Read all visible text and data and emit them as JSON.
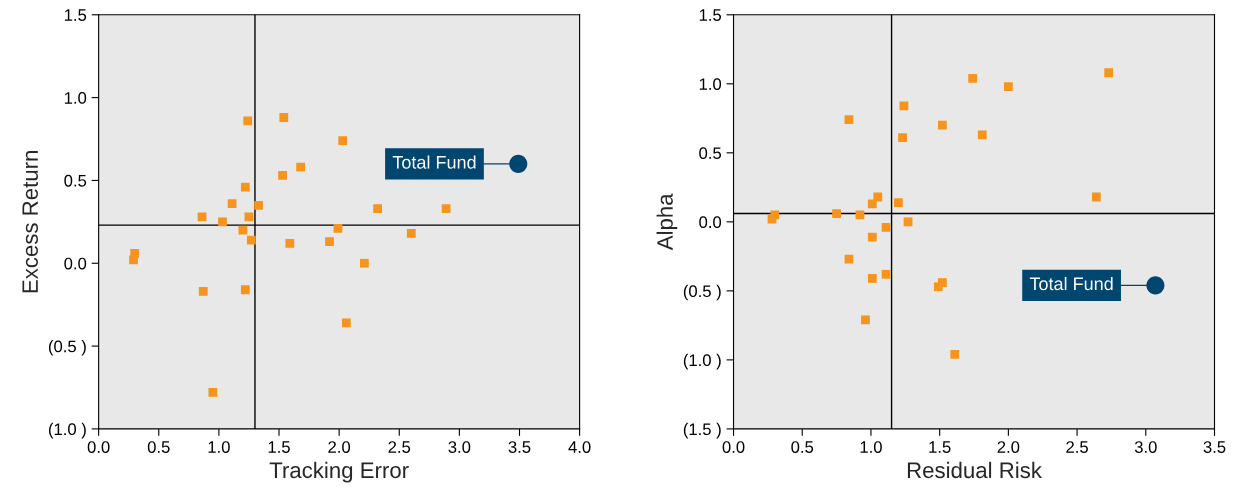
{
  "chart_data": [
    {
      "type": "scatter",
      "xlabel": "Tracking Error",
      "ylabel": "Excess Return",
      "marker": "square",
      "grid": false,
      "legend": "right",
      "xlim": [
        0,
        4
      ],
      "xticks": [
        {
          "value": 0,
          "label": "0.0"
        },
        {
          "value": 0.5,
          "label": "0.5"
        },
        {
          "value": 1,
          "label": "1.0"
        },
        {
          "value": 1.5,
          "label": "1.5"
        },
        {
          "value": 2,
          "label": "2.0"
        },
        {
          "value": 2.5,
          "label": "2.5"
        },
        {
          "value": 3,
          "label": "3.0"
        },
        {
          "value": 3.5,
          "label": "3.5"
        },
        {
          "value": 4,
          "label": "4.0"
        }
      ],
      "ylim": [
        -1,
        1.5
      ],
      "yticks": [
        {
          "value": -1,
          "label": "(1.0 )"
        },
        {
          "value": -0.5,
          "label": "(0.5 )"
        },
        {
          "value": 0,
          "label": "0.0"
        },
        {
          "value": 0.5,
          "label": "0.5"
        },
        {
          "value": 1,
          "label": "1.0"
        },
        {
          "value": 1.5,
          "label": "1.5"
        }
      ],
      "ref_lines": [
        {
          "axis": "x",
          "value": 1.3,
          "color": "#000000"
        },
        {
          "axis": "y",
          "value": 0.23,
          "color": "#000000"
        }
      ],
      "series": [
        {
          "color": "#f7941d",
          "x": [
            1.24,
            1.54,
            2.03,
            1.68,
            1.53,
            1.22,
            1.11,
            1.33,
            2.32,
            2.89,
            0.86,
            1.25,
            1.03,
            1.2,
            1.99,
            2.6,
            1.27,
            1.59,
            1.92,
            0.3,
            0.29,
            2.21,
            0.87,
            1.22,
            2.06,
            0.95
          ],
          "values": [
            0.86,
            0.88,
            0.74,
            0.58,
            0.53,
            0.46,
            0.36,
            0.35,
            0.33,
            0.33,
            0.28,
            0.28,
            0.25,
            0.2,
            0.21,
            0.18,
            0.14,
            0.12,
            0.13,
            0.06,
            0.02,
            0.0,
            -0.17,
            -0.16,
            -0.36,
            -0.78
          ]
        },
        {
          "name": "Total Fund",
          "color": "#00466e",
          "marker": "circle",
          "x": [
            3.49
          ],
          "values": [
            0.6
          ]
        }
      ]
    },
    {
      "type": "scatter",
      "xlabel": "Residual Risk",
      "ylabel": "Alpha",
      "marker": "square",
      "grid": false,
      "legend": "bottom right",
      "xlim": [
        0,
        3.5
      ],
      "xticks": [
        {
          "value": 0,
          "label": "0.0"
        },
        0.5,
        {
          "value": 1,
          "label": "1.0"
        },
        1.5,
        {
          "value": 2,
          "label": "2.0"
        },
        2.5,
        {
          "value": 3,
          "label": "3.0"
        },
        3.5
      ],
      "ylim": [
        -1.5,
        1.5
      ],
      "yticks": [
        {
          "value": -1.5,
          "label": "(1.5 )"
        },
        {
          "value": -1,
          "label": "(1.0 )"
        },
        {
          "value": -0.5,
          "label": "(0.5 )"
        },
        {
          "value": 0,
          "label": "0.0"
        },
        0.5,
        {
          "value": 1,
          "label": "1.0"
        },
        1.5
      ],
      "ref_lines": [
        {
          "axis": "x",
          "value": 1.15,
          "color": "#000000"
        },
        {
          "axis": "y",
          "value": 0.06,
          "color": "#000000"
        }
      ],
      "series": [
        {
          "color": "#f7941d",
          "x": [
            2.73,
            1.74,
            2.0,
            1.24,
            0.84,
            1.52,
            1.81,
            1.23,
            2.64,
            1.05,
            1.01,
            1.2,
            0.3,
            0.28,
            0.75,
            0.92,
            1.27,
            1.11,
            1.01,
            0.84,
            1.11,
            1.01,
            1.52,
            1.49,
            0.96,
            1.61
          ],
          "values": [
            1.08,
            1.04,
            0.98,
            0.84,
            0.74,
            0.7,
            0.63,
            0.61,
            0.18,
            0.18,
            0.13,
            0.14,
            0.05,
            0.02,
            0.06,
            0.05,
            0.0,
            -0.04,
            -0.11,
            -0.27,
            -0.38,
            -0.41,
            -0.44,
            -0.47,
            -0.71,
            -0.96
          ]
        },
        {
          "name": "Total Fund",
          "color": "#00466e",
          "marker": "circle",
          "x": [
            3.07
          ],
          "values": [
            -0.46
          ]
        }
      ]
    }
  ]
}
